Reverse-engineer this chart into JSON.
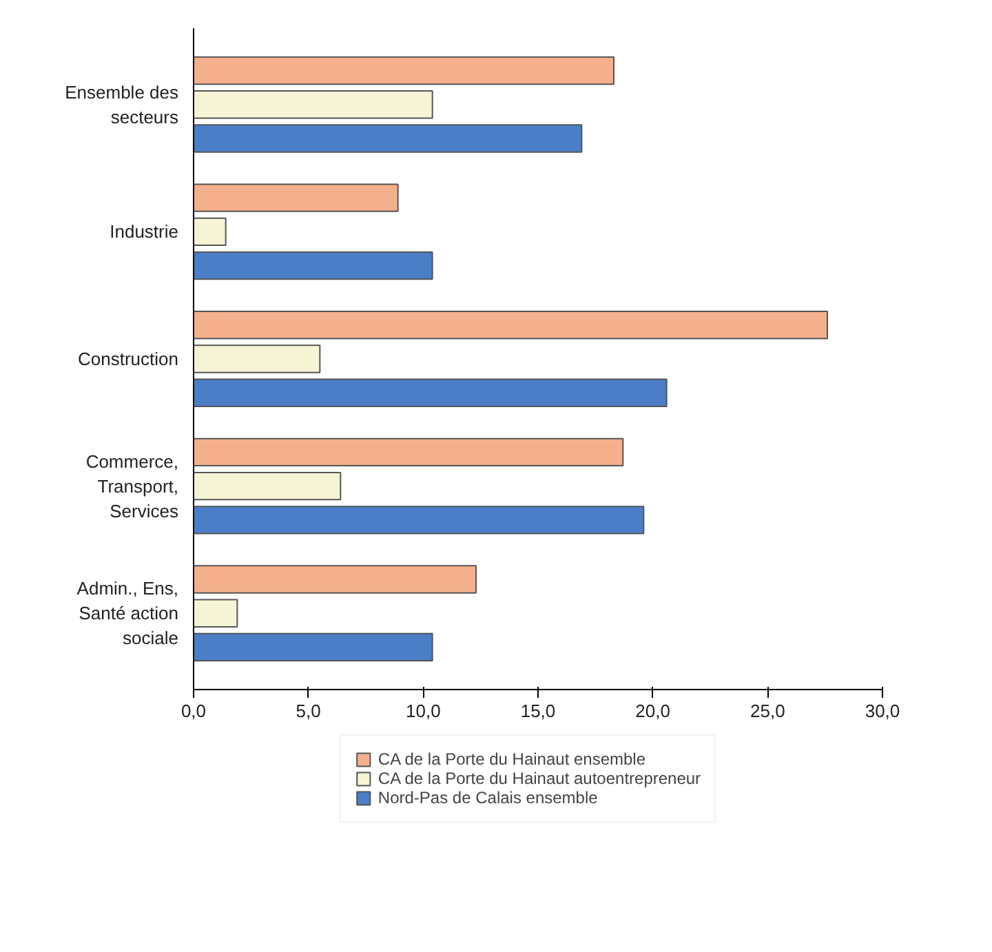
{
  "chart_data": {
    "type": "bar",
    "orientation": "horizontal",
    "categories": [
      "Ensemble des secteurs",
      "Industrie",
      "Construction",
      "Commerce, Transport, Services",
      "Admin., Ens, Santé action sociale"
    ],
    "series": [
      {
        "name": "CA de la Porte du Hainaut ensemble",
        "color": "#f4b08c",
        "values": [
          18.3,
          8.9,
          27.6,
          18.7,
          12.3
        ]
      },
      {
        "name": "CA de la Porte du Hainaut autoentrepreneur",
        "color": "#f5f5d6",
        "values": [
          10.4,
          1.4,
          5.5,
          6.4,
          1.9
        ]
      },
      {
        "name": "Nord-Pas de Calais ensemble",
        "color": "#4a7fc8",
        "values": [
          16.9,
          10.4,
          20.6,
          19.6,
          10.4
        ]
      }
    ],
    "xlim": [
      0,
      30
    ],
    "xticks": [
      {
        "value": 0,
        "label": "0,0"
      },
      {
        "value": 5,
        "label": "5,0"
      },
      {
        "value": 10,
        "label": "10,0"
      },
      {
        "value": 15,
        "label": "15,0"
      },
      {
        "value": 20,
        "label": "20,0"
      },
      {
        "value": 25,
        "label": "25,0"
      },
      {
        "value": 30,
        "label": "30,0"
      }
    ],
    "grid": false,
    "legend": "bottom"
  }
}
